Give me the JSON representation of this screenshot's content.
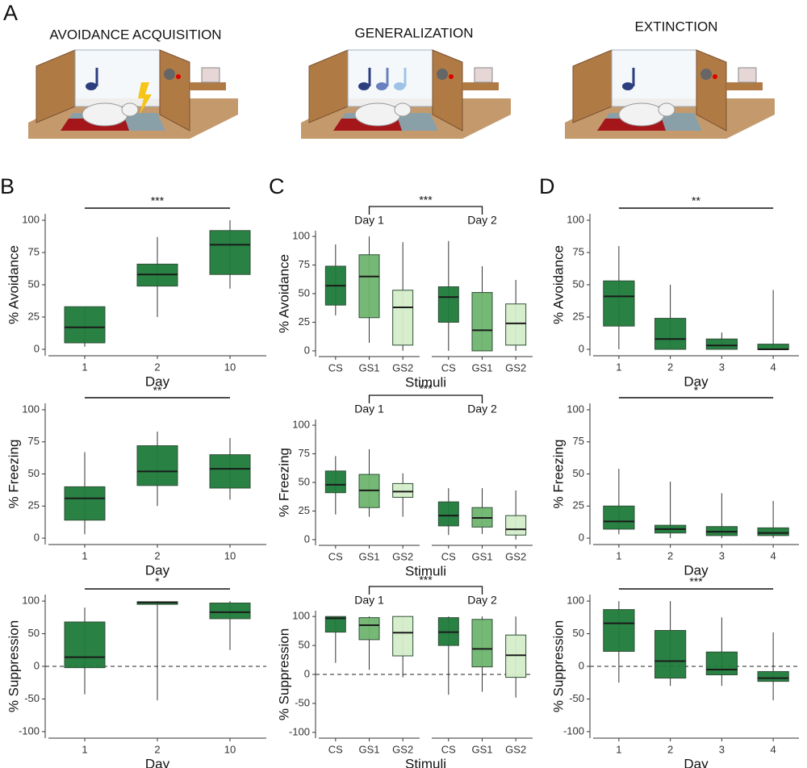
{
  "panel_labels": [
    "A",
    "B",
    "C",
    "D"
  ],
  "illustrations": [
    {
      "title": "AVOIDANCE ACQUISITION"
    },
    {
      "title": "GENERALIZATION"
    },
    {
      "title": "EXTINCTION"
    }
  ],
  "chart_data": [
    {
      "type": "box",
      "ylabel": "% Avoidance",
      "xlabel": "Day",
      "categories": [
        "1",
        "2",
        "10"
      ],
      "colors": [
        "#1e7b3a",
        "#1e7b3a",
        "#1e7b3a"
      ],
      "ylim": [
        -5,
        105
      ],
      "yticks": [
        0,
        25,
        50,
        75,
        100
      ],
      "significance": {
        "text": "***",
        "from": "1",
        "to": "10"
      },
      "boxes": [
        {
          "min": 2,
          "q1": 5,
          "median": 17,
          "q3": 33,
          "max": 33
        },
        {
          "min": 25,
          "q1": 49,
          "median": 58,
          "q3": 66,
          "max": 87
        },
        {
          "min": 47,
          "q1": 58,
          "median": 81,
          "q3": 92,
          "max": 100
        }
      ]
    },
    {
      "type": "box",
      "ylabel": "% Avoidance",
      "xlabel": "Stimuli",
      "categories": [
        "CS",
        "GS1",
        "GS2",
        "CS",
        "GS1",
        "GS2"
      ],
      "groups": [
        "Day 1",
        "Day 2"
      ],
      "colors": [
        "#1e7b3a",
        "#6fb56f",
        "#d4edc9",
        "#1e7b3a",
        "#6fb56f",
        "#d4edc9"
      ],
      "ylim": [
        -5,
        105
      ],
      "yticks": [
        0,
        25,
        50,
        75,
        100
      ],
      "significance": {
        "text": "***",
        "from": "Day 1",
        "to": "Day 2"
      },
      "boxes": [
        {
          "min": 31,
          "q1": 40,
          "median": 57,
          "q3": 74,
          "max": 93
        },
        {
          "min": 7,
          "q1": 29,
          "median": 65,
          "q3": 84,
          "max": 100
        },
        {
          "min": 0,
          "q1": 5,
          "median": 38,
          "q3": 53,
          "max": 95
        },
        {
          "min": 0,
          "q1": 25,
          "median": 47,
          "q3": 56,
          "max": 96
        },
        {
          "min": 0,
          "q1": 0,
          "median": 18,
          "q3": 51,
          "max": 74
        },
        {
          "min": 0,
          "q1": 5,
          "median": 24,
          "q3": 41,
          "max": 62
        }
      ]
    },
    {
      "type": "box",
      "ylabel": "% Avoidance",
      "xlabel": "Day",
      "categories": [
        "1",
        "2",
        "3",
        "4"
      ],
      "colors": [
        "#1e7b3a",
        "#1e7b3a",
        "#1e7b3a",
        "#1e7b3a"
      ],
      "ylim": [
        -5,
        105
      ],
      "yticks": [
        0,
        25,
        50,
        75,
        100
      ],
      "significance": {
        "text": "**",
        "from": "1",
        "to": "4"
      },
      "boxes": [
        {
          "min": 0,
          "q1": 18,
          "median": 41,
          "q3": 53,
          "max": 80
        },
        {
          "min": 0,
          "q1": 0,
          "median": 8,
          "q3": 24,
          "max": 50
        },
        {
          "min": 0,
          "q1": 0,
          "median": 3,
          "q3": 8,
          "max": 13
        },
        {
          "min": 0,
          "q1": 0,
          "median": 0,
          "q3": 4,
          "max": 46
        }
      ]
    },
    {
      "type": "box",
      "ylabel": "% Freezing",
      "xlabel": "Day",
      "categories": [
        "1",
        "2",
        "10"
      ],
      "colors": [
        "#1e7b3a",
        "#1e7b3a",
        "#1e7b3a"
      ],
      "ylim": [
        -5,
        105
      ],
      "yticks": [
        0,
        25,
        50,
        75,
        100
      ],
      "significance": {
        "text": "**",
        "from": "1",
        "to": "10"
      },
      "boxes": [
        {
          "min": 3,
          "q1": 14,
          "median": 31,
          "q3": 40,
          "max": 67
        },
        {
          "min": 25,
          "q1": 41,
          "median": 52,
          "q3": 72,
          "max": 83
        },
        {
          "min": 30,
          "q1": 39,
          "median": 54,
          "q3": 65,
          "max": 78
        }
      ]
    },
    {
      "type": "box",
      "ylabel": "% Freezing",
      "xlabel": "Stimuli",
      "categories": [
        "CS",
        "GS1",
        "GS2",
        "CS",
        "GS1",
        "GS2"
      ],
      "groups": [
        "Day 1",
        "Day 2"
      ],
      "colors": [
        "#1e7b3a",
        "#6fb56f",
        "#d4edc9",
        "#1e7b3a",
        "#6fb56f",
        "#d4edc9"
      ],
      "ylim": [
        -5,
        105
      ],
      "yticks": [
        0,
        25,
        50,
        75,
        100
      ],
      "significance": {
        "text": "***",
        "from": "Day 1",
        "to": "Day 2"
      },
      "boxes": [
        {
          "min": 22,
          "q1": 41,
          "median": 48,
          "q3": 60,
          "max": 73
        },
        {
          "min": 20,
          "q1": 28,
          "median": 43,
          "q3": 57,
          "max": 79
        },
        {
          "min": 20,
          "q1": 37,
          "median": 42,
          "q3": 49,
          "max": 58
        },
        {
          "min": 4,
          "q1": 12,
          "median": 21,
          "q3": 33,
          "max": 45
        },
        {
          "min": 5,
          "q1": 11,
          "median": 19,
          "q3": 28,
          "max": 45
        },
        {
          "min": 0,
          "q1": 4,
          "median": 9,
          "q3": 21,
          "max": 43
        }
      ]
    },
    {
      "type": "box",
      "ylabel": "% Freezing",
      "xlabel": "Day",
      "categories": [
        "1",
        "2",
        "3",
        "4"
      ],
      "colors": [
        "#1e7b3a",
        "#1e7b3a",
        "#1e7b3a",
        "#1e7b3a"
      ],
      "ylim": [
        -5,
        105
      ],
      "yticks": [
        0,
        25,
        50,
        75,
        100
      ],
      "significance": {
        "text": "*",
        "from": "1",
        "to": "4"
      },
      "boxes": [
        {
          "min": 3,
          "q1": 7,
          "median": 13,
          "q3": 25,
          "max": 54
        },
        {
          "min": 0,
          "q1": 4,
          "median": 7,
          "q3": 10,
          "max": 44
        },
        {
          "min": 0,
          "q1": 2,
          "median": 5,
          "q3": 9,
          "max": 35
        },
        {
          "min": 0,
          "q1": 2,
          "median": 4,
          "q3": 8,
          "max": 29
        }
      ]
    },
    {
      "type": "box",
      "ylabel": "% Suppression",
      "xlabel": "Day",
      "categories": [
        "1",
        "2",
        "10"
      ],
      "colors": [
        "#1e7b3a",
        "#1e7b3a",
        "#1e7b3a"
      ],
      "ylim": [
        -110,
        110
      ],
      "yticks": [
        -100,
        -50,
        0,
        50,
        100
      ],
      "reference_line": 0,
      "significance": {
        "text": "*",
        "from": "1",
        "to": "10"
      },
      "boxes": [
        {
          "min": -43,
          "q1": -2,
          "median": 14,
          "q3": 68,
          "max": 90
        },
        {
          "min": -52,
          "q1": 95,
          "median": 98,
          "q3": 99,
          "max": 100
        },
        {
          "min": 25,
          "q1": 73,
          "median": 83,
          "q3": 97,
          "max": 100
        }
      ]
    },
    {
      "type": "box",
      "ylabel": "% Suppression",
      "xlabel": "Stimuli",
      "categories": [
        "CS",
        "GS1",
        "GS2",
        "CS",
        "GS1",
        "GS2"
      ],
      "groups": [
        "Day 1",
        "Day 2"
      ],
      "colors": [
        "#1e7b3a",
        "#6fb56f",
        "#d4edc9",
        "#1e7b3a",
        "#6fb56f",
        "#d4edc9"
      ],
      "ylim": [
        -110,
        110
      ],
      "yticks": [
        -100,
        -50,
        0,
        50,
        100
      ],
      "reference_line": 0,
      "significance": {
        "text": "***",
        "from": "Day 1",
        "to": "Day 2"
      },
      "boxes": [
        {
          "min": 20,
          "q1": 73,
          "median": 97,
          "q3": 100,
          "max": 100
        },
        {
          "min": 8,
          "q1": 60,
          "median": 85,
          "q3": 98,
          "max": 100
        },
        {
          "min": -5,
          "q1": 32,
          "median": 72,
          "q3": 100,
          "max": 100
        },
        {
          "min": -35,
          "q1": 50,
          "median": 73,
          "q3": 98,
          "max": 100
        },
        {
          "min": -30,
          "q1": 13,
          "median": 44,
          "q3": 95,
          "max": 100
        },
        {
          "min": -40,
          "q1": -5,
          "median": 33,
          "q3": 68,
          "max": 100
        }
      ]
    },
    {
      "type": "box",
      "ylabel": "% Suppression",
      "xlabel": "Day",
      "categories": [
        "1",
        "2",
        "3",
        "4"
      ],
      "colors": [
        "#1e7b3a",
        "#1e7b3a",
        "#1e7b3a",
        "#1e7b3a"
      ],
      "ylim": [
        -110,
        110
      ],
      "yticks": [
        -100,
        -50,
        0,
        50,
        100
      ],
      "reference_line": 0,
      "significance": {
        "text": "***",
        "from": "1",
        "to": "4"
      },
      "boxes": [
        {
          "min": -25,
          "q1": 23,
          "median": 66,
          "q3": 87,
          "max": 100
        },
        {
          "min": -30,
          "q1": -18,
          "median": 8,
          "q3": 55,
          "max": 100
        },
        {
          "min": -30,
          "q1": -13,
          "median": -5,
          "q3": 22,
          "max": 75
        },
        {
          "min": -52,
          "q1": -23,
          "median": -18,
          "q3": -8,
          "max": 52
        }
      ]
    }
  ]
}
